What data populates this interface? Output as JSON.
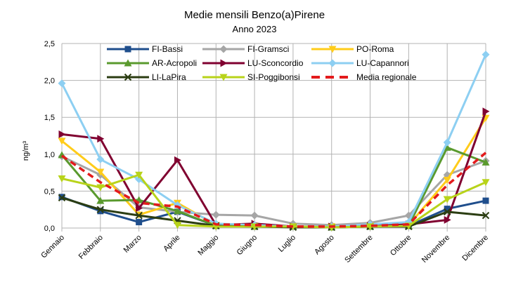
{
  "chart_data": {
    "type": "line",
    "title": "Medie mensili Benzo(a)Pirene",
    "subtitle": "Anno 2023",
    "ylabel": "ng/m³",
    "xlabel": "",
    "categories": [
      "Gennaio",
      "Febbraio",
      "Marzo",
      "Aprile",
      "Maggio",
      "Giugno",
      "Luglio",
      "Agosto",
      "Settembre",
      "Ottobre",
      "Novembre",
      "Dicembre"
    ],
    "ylim": [
      0,
      2.5
    ],
    "yticks": [
      "0,0",
      "0,5",
      "1,0",
      "1,5",
      "2,0",
      "2,5"
    ],
    "ytick_values": [
      0,
      0.5,
      1.0,
      1.5,
      2.0,
      2.5
    ],
    "grid": true,
    "legend_position": "top",
    "series": [
      {
        "name": "FI-Bassi",
        "color": "#1f4e8c",
        "marker": "square",
        "dashed": false,
        "values": [
          0.42,
          0.23,
          0.08,
          0.22,
          0.03,
          0.02,
          0.02,
          0.01,
          0.02,
          0.03,
          0.26,
          0.37
        ]
      },
      {
        "name": "FI-Gramsci",
        "color": "#a6a6a6",
        "marker": "diamond",
        "dashed": false,
        "values": [
          0.97,
          0.72,
          0.28,
          0.22,
          0.18,
          0.17,
          0.06,
          0.04,
          0.07,
          0.17,
          0.72,
          0.91
        ]
      },
      {
        "name": "PO-Roma",
        "color": "#ffcc1a",
        "marker": "triangle-down",
        "dashed": false,
        "values": [
          1.18,
          0.76,
          0.18,
          0.34,
          0.04,
          0.03,
          0.02,
          0.02,
          0.03,
          0.04,
          0.65,
          1.49
        ]
      },
      {
        "name": "AR-Acropoli",
        "color": "#5a9a2e",
        "marker": "triangle-up",
        "dashed": false,
        "values": [
          0.99,
          0.37,
          0.38,
          0.23,
          0.03,
          0.02,
          0.02,
          0.01,
          0.02,
          0.03,
          1.09,
          0.89
        ]
      },
      {
        "name": "LU-Sconcordio",
        "color": "#800030",
        "marker": "triangle-right",
        "dashed": false,
        "values": [
          1.27,
          1.21,
          0.27,
          0.92,
          0.04,
          0.06,
          0.02,
          0.02,
          0.03,
          0.05,
          0.11,
          1.58
        ]
      },
      {
        "name": "LU-Capannori",
        "color": "#8dcff2",
        "marker": "diamond",
        "dashed": false,
        "values": [
          1.96,
          0.93,
          0.66,
          0.31,
          0.06,
          0.04,
          0.02,
          0.02,
          0.05,
          0.08,
          1.16,
          2.35
        ]
      },
      {
        "name": "LI-LaPira",
        "color": "#2b3d12",
        "marker": "x",
        "dashed": false,
        "values": [
          0.41,
          0.25,
          0.17,
          0.1,
          0.03,
          0.02,
          0.01,
          0.01,
          0.02,
          0.02,
          0.22,
          0.17
        ]
      },
      {
        "name": "SI-Poggibonsi",
        "color": "#b8d31a",
        "marker": "triangle-down",
        "dashed": false,
        "values": [
          0.67,
          0.55,
          0.72,
          0.04,
          0.02,
          0.02,
          0.02,
          0.01,
          0.02,
          0.03,
          0.39,
          0.62
        ]
      },
      {
        "name": "Media regionale",
        "color": "#e31a1c",
        "marker": "none",
        "dashed": true,
        "values": [
          0.98,
          0.62,
          0.34,
          0.29,
          0.05,
          0.04,
          0.02,
          0.02,
          0.03,
          0.05,
          0.58,
          1.02
        ]
      }
    ]
  }
}
